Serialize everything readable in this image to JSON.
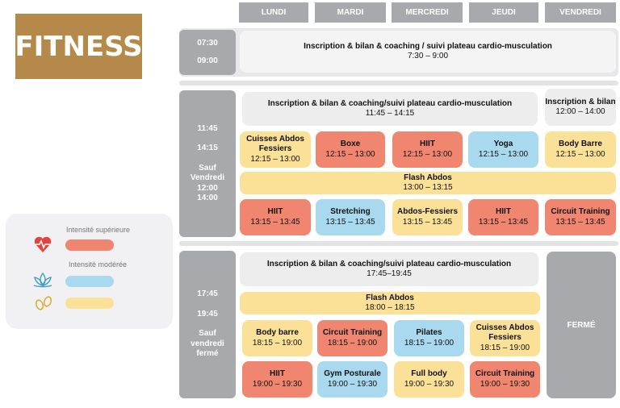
{
  "logo": "FITNESS",
  "days": [
    "LUNDI",
    "MARDI",
    "MERCREDI",
    "JEUDI",
    "VENDREDI"
  ],
  "block1": {
    "time_start": "07:30",
    "time_end": "09:00",
    "all_week": {
      "title": "Inscription & bilan & coaching / suivi plateau cardio-musculation",
      "time": "7:30 – 9:00"
    }
  },
  "block2": {
    "time_lines": [
      "11:45",
      "14:15",
      "Sauf",
      "Vendredi",
      "12:00",
      "14:00"
    ],
    "signup": {
      "title": "Inscription & bilan & coaching/suivi plateau cardio-musculation",
      "time": "11:45 – 14:15"
    },
    "signup_fri": {
      "title": "Inscription & bilan",
      "time": "12:00 – 14:00"
    },
    "row1": [
      {
        "title": "Cuisses Abdos Fessiers",
        "time": "12:15 – 13:00"
      },
      {
        "title": "Boxe",
        "time": "12:15 – 13:00"
      },
      {
        "title": "HIIT",
        "time": "12:15 – 13:00"
      },
      {
        "title": "Yoga",
        "time": "12:15 – 13:00"
      },
      {
        "title": "Body Barre",
        "time": "12:15 – 13:00"
      }
    ],
    "flash": {
      "title": "Flash Abdos",
      "time": "13:00 – 13:15"
    },
    "row2": [
      {
        "title": "HIIT",
        "time": "13:15 – 13:45"
      },
      {
        "title": "Stretching",
        "time": "13:15 – 13:45"
      },
      {
        "title": "Abdos-Fessiers",
        "time": "13:15 – 13:45"
      },
      {
        "title": "HIIT",
        "time": "13:15 – 13:45"
      },
      {
        "title": "Circuit Training",
        "time": "13:15 – 13:45"
      }
    ]
  },
  "block3": {
    "time_lines": [
      "17:45",
      "19:45",
      "Sauf",
      "vendredi",
      "fermé"
    ],
    "signup": {
      "title": "Inscription & bilan & coaching/suivi plateau cardio-musculation",
      "time": "17:45–19:45"
    },
    "flash": {
      "title": "Flash Abdos",
      "time": "18:00 – 18:15"
    },
    "row1": [
      {
        "title": "Body barre",
        "time": "18:15 – 19:00"
      },
      {
        "title": "Circuit Training",
        "time": "18:15 – 19:00"
      },
      {
        "title": "Pilates",
        "time": "18:15 – 19:00"
      },
      {
        "title": "Cuisses Abdos Fessiers",
        "time": "18:15 – 19:00"
      }
    ],
    "row2": [
      {
        "title": "HIIT",
        "time": "19:00 – 19:30"
      },
      {
        "title": "Gym Posturale",
        "time": "19:00 – 19:30"
      },
      {
        "title": "Full body",
        "time": "19:00 – 19:30"
      },
      {
        "title": "Circuit Training",
        "time": "19:00 – 19:30"
      }
    ],
    "closed": "FERMÉ"
  },
  "legend": {
    "high": "Intensité supérieure",
    "moderate": "Intensité modérée",
    "colors": {
      "high": "#f08670",
      "moderate": "#a9d9ee",
      "light": "#fbe198"
    }
  }
}
